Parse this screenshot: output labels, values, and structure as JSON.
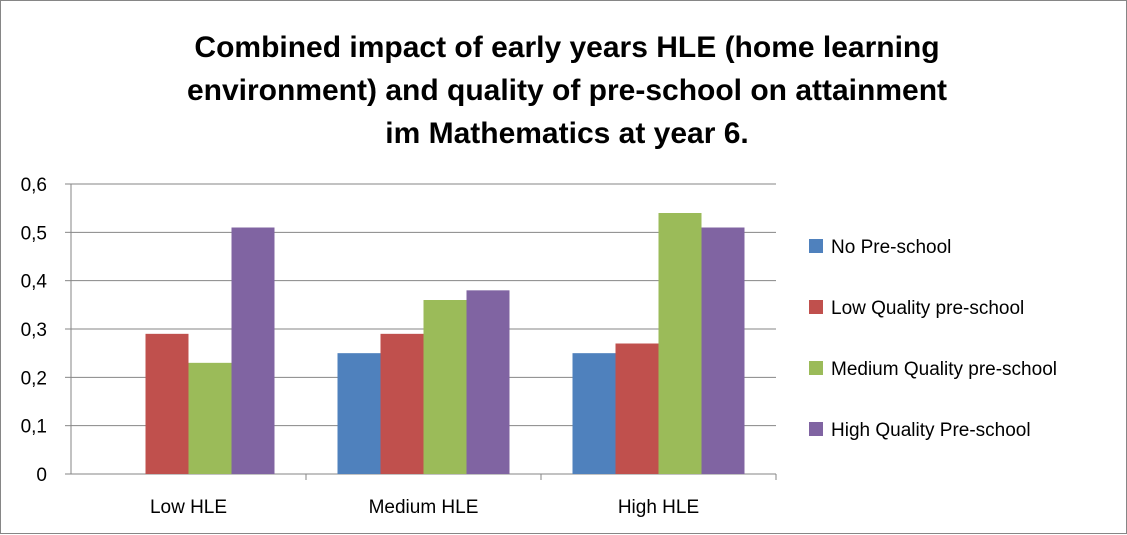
{
  "chart_data": {
    "type": "bar",
    "title_lines": [
      "Combined impact of early years HLE (home learning",
      "environment) and quality of pre-school on attainment",
      "im Mathematics at year 6."
    ],
    "categories": [
      "Low HLE",
      "Medium HLE",
      "High HLE"
    ],
    "series": [
      {
        "name": "No Pre-school",
        "color": "#4F81BD",
        "values": [
          0,
          0.25,
          0.25
        ]
      },
      {
        "name": "Low Quality pre-school",
        "color": "#C0504D",
        "values": [
          0.29,
          0.29,
          0.27
        ]
      },
      {
        "name": "Medium Quality pre-school",
        "color": "#9BBB59",
        "values": [
          0.23,
          0.36,
          0.54
        ]
      },
      {
        "name": "High Quality Pre-school",
        "color": "#8064A2",
        "values": [
          0.51,
          0.38,
          0.51
        ]
      }
    ],
    "ylim": [
      0,
      0.6
    ],
    "yticks": [
      "0",
      "0,1",
      "0,2",
      "0,3",
      "0,4",
      "0,5",
      "0,6"
    ],
    "xlabel": "",
    "ylabel": "",
    "grid": true,
    "legend_position": "right"
  }
}
